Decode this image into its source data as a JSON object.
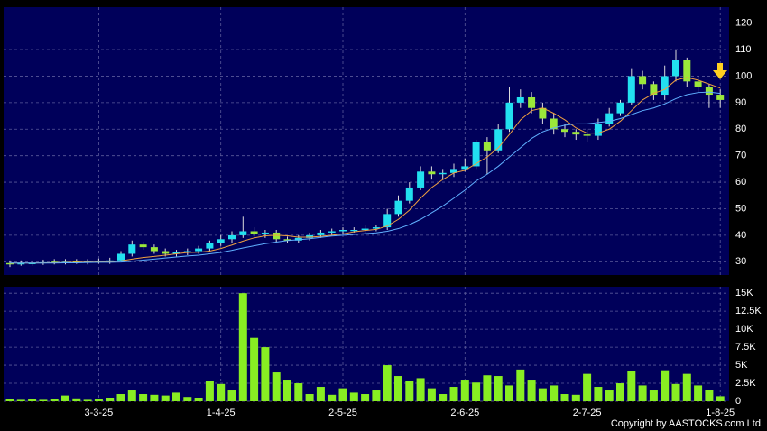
{
  "copyright": "Copyright by AASTOCKS.com Ltd.",
  "chart_data": [
    {
      "type": "candlestick",
      "up_color": "#22e0f0",
      "down_color": "#9be83a",
      "open": [
        29.5,
        29,
        29.5,
        29.5,
        30,
        29.8,
        30.2,
        30,
        30.3,
        30,
        30.5,
        33,
        36.5,
        35.5,
        34,
        33,
        33.5,
        34,
        35,
        37,
        38.5,
        40,
        41.5,
        40.5,
        41,
        38.5,
        38,
        39,
        40,
        41,
        41.5,
        42,
        42,
        42.5,
        43,
        48,
        53,
        58,
        64,
        63,
        63.5,
        65,
        66,
        75,
        72,
        80,
        90,
        92,
        88,
        84,
        80,
        79,
        78,
        77.5,
        82,
        86,
        90,
        100,
        97,
        93,
        100,
        106,
        98,
        96,
        93
      ],
      "high": [
        30.5,
        30.5,
        30.5,
        30.8,
        31,
        31,
        31,
        31,
        31.2,
        31.5,
        34,
        38,
        37.5,
        36.5,
        35,
        34.5,
        35,
        36,
        38,
        40,
        41.5,
        47,
        43,
        42,
        42,
        39.5,
        40,
        41,
        42,
        42.5,
        43,
        43,
        44,
        44,
        50,
        55,
        60,
        66,
        66,
        65,
        67,
        69,
        76,
        77,
        82,
        96,
        95,
        94,
        90,
        86,
        82,
        80,
        80,
        84,
        88,
        91,
        103,
        102,
        98,
        104,
        110,
        107,
        100,
        97,
        95
      ],
      "low": [
        28,
        28.5,
        28.5,
        28.8,
        29,
        29,
        29.2,
        29,
        29.3,
        29.2,
        30,
        32,
        34.5,
        33,
        32,
        32,
        32.5,
        33,
        34,
        36,
        37,
        39,
        39.5,
        39,
        37.5,
        37,
        37,
        38,
        39,
        40,
        40.5,
        41,
        41,
        41.5,
        42,
        47,
        52,
        57,
        61,
        61,
        62,
        64,
        65,
        63,
        71,
        79,
        88,
        86,
        82,
        78,
        77,
        76,
        75,
        76,
        81,
        85,
        89,
        95,
        91,
        91,
        98,
        96,
        94,
        88,
        88
      ],
      "close": [
        29,
        29.5,
        29.5,
        29.8,
        29.8,
        30,
        30,
        30.2,
        30,
        30.5,
        33,
        36.5,
        35.5,
        34,
        33,
        33.5,
        34,
        35,
        37,
        38.5,
        40,
        41.5,
        40.5,
        41,
        38.5,
        38,
        39,
        40,
        41,
        41.5,
        42,
        42,
        42.5,
        43,
        48,
        53,
        58,
        64,
        63,
        63.5,
        65,
        66,
        75,
        72,
        80,
        90,
        92,
        88,
        84,
        80,
        79,
        78,
        77.5,
        82,
        86,
        90,
        100,
        97,
        93,
        100,
        106,
        98,
        96,
        93,
        91
      ],
      "lines": [
        {
          "color": "#f0a040",
          "values": [
            29.5,
            29.5,
            29.5,
            29.6,
            29.6,
            29.7,
            29.8,
            29.9,
            29.9,
            30,
            30.3,
            31,
            31.6,
            32,
            32.5,
            33,
            33.5,
            33.6,
            34,
            35,
            36.3,
            37.8,
            39,
            39.8,
            40,
            39.8,
            39.3,
            39.3,
            39.6,
            40,
            40.5,
            41.3,
            41.8,
            42.2,
            43.5,
            46,
            49.5,
            54,
            58,
            61,
            63.5,
            64.5,
            67,
            69.5,
            73,
            78,
            83.5,
            87,
            88,
            86,
            83.5,
            80.5,
            78.5,
            78.5,
            80,
            83,
            87,
            91,
            93.5,
            95,
            98.5,
            99.5,
            98.5,
            97,
            95.5
          ]
        },
        {
          "color": "#60b0ff",
          "values": [
            29.5,
            29.5,
            29.5,
            29.5,
            29.5,
            29.6,
            29.6,
            29.7,
            29.8,
            29.8,
            29.9,
            30.2,
            30.6,
            31,
            31.4,
            31.8,
            32.2,
            32.5,
            33,
            33.5,
            34.3,
            35.2,
            36,
            36.8,
            37.4,
            38,
            38.3,
            38.7,
            39.2,
            39.7,
            40,
            40.3,
            40.6,
            40.9,
            41.5,
            42.5,
            44,
            46,
            48.5,
            51,
            54,
            57,
            60.5,
            63,
            66,
            69.5,
            73,
            76.5,
            79,
            80.5,
            81.5,
            82,
            82,
            82.5,
            83,
            84,
            85.5,
            87,
            88,
            89.5,
            91.5,
            93,
            93.8,
            94,
            93.5
          ]
        }
      ],
      "ylim": [
        25,
        126
      ],
      "yticks": [
        30,
        40,
        50,
        60,
        70,
        80,
        90,
        100,
        110,
        120
      ],
      "grid": true
    },
    {
      "type": "bar",
      "color": "#88ee22",
      "categories": [
        null,
        null,
        null,
        null,
        null,
        null,
        null,
        null,
        "3-3-25",
        null,
        null,
        null,
        null,
        null,
        null,
        null,
        null,
        null,
        null,
        "1-4-25",
        null,
        null,
        null,
        null,
        null,
        null,
        null,
        null,
        null,
        null,
        "2-5-25",
        null,
        null,
        null,
        null,
        null,
        null,
        null,
        null,
        null,
        null,
        "2-6-25",
        null,
        null,
        null,
        null,
        null,
        null,
        null,
        null,
        null,
        null,
        "2-7-25",
        null,
        null,
        null,
        null,
        null,
        null,
        null,
        null,
        null,
        null,
        null,
        "1-8-25"
      ],
      "values": [
        300,
        200,
        250,
        200,
        300,
        800,
        400,
        200,
        300,
        500,
        1000,
        1500,
        1000,
        900,
        800,
        1200,
        600,
        500,
        2800,
        2400,
        1500,
        15000,
        8800,
        7500,
        4000,
        3000,
        2500,
        1000,
        2000,
        900,
        1800,
        1200,
        1000,
        1500,
        5000,
        3500,
        2800,
        3200,
        1800,
        1000,
        2000,
        3000,
        2600,
        3600,
        3500,
        2200,
        4400,
        3000,
        1800,
        2200,
        1000,
        900,
        3800,
        2000,
        1500,
        2500,
        4200,
        2200,
        1500,
        4300,
        2400,
        3800,
        2200,
        1600,
        700
      ],
      "ylim": [
        0,
        15900
      ],
      "yticks": [
        0,
        {
          "value": 2500,
          "label": "2.5K"
        },
        {
          "value": 5000,
          "label": "5K"
        },
        {
          "value": 7500,
          "label": "7.5K"
        },
        {
          "value": 10000,
          "label": "10K"
        },
        {
          "value": 12500,
          "label": "12.5K"
        },
        {
          "value": 15000,
          "label": "15K"
        }
      ],
      "grid": true
    }
  ]
}
